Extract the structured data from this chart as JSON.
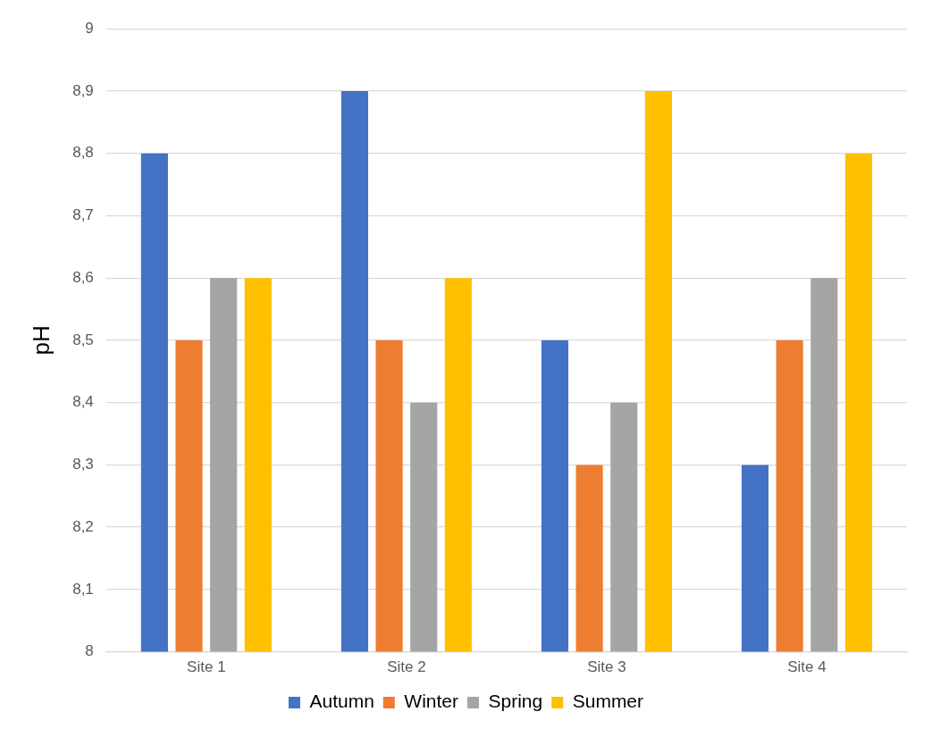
{
  "chart_data": {
    "type": "bar",
    "ylabel": "pH",
    "categories": [
      "Site 1",
      "Site 2",
      "Site 3",
      "Site 4"
    ],
    "series": [
      {
        "name": "Autumn",
        "color": "#4472c4",
        "values": [
          8.8,
          8.9,
          8.5,
          8.3
        ]
      },
      {
        "name": "Winter",
        "color": "#ed7d31",
        "values": [
          8.5,
          8.5,
          8.3,
          8.5
        ]
      },
      {
        "name": "Spring",
        "color": "#a5a5a5",
        "values": [
          8.6,
          8.4,
          8.4,
          8.6
        ]
      },
      {
        "name": "Summer",
        "color": "#ffc000",
        "values": [
          8.6,
          8.6,
          8.9,
          8.8
        ]
      }
    ],
    "ylim": [
      8,
      9
    ],
    "yticks": [
      8,
      {
        "value": 8.1,
        "label": "8,1"
      },
      {
        "value": 8.2,
        "label": "8,2"
      },
      {
        "value": 8.3,
        "label": "8,3"
      },
      {
        "value": 8.4,
        "label": "8,4"
      },
      {
        "value": 8.5,
        "label": "8,5"
      },
      {
        "value": 8.6,
        "label": "8,6"
      },
      {
        "value": 8.7,
        "label": "8,7"
      },
      {
        "value": 8.8,
        "label": "8,8"
      },
      {
        "value": 8.9,
        "label": "8,9"
      },
      9
    ],
    "grid": "y",
    "legend": "bottom"
  }
}
